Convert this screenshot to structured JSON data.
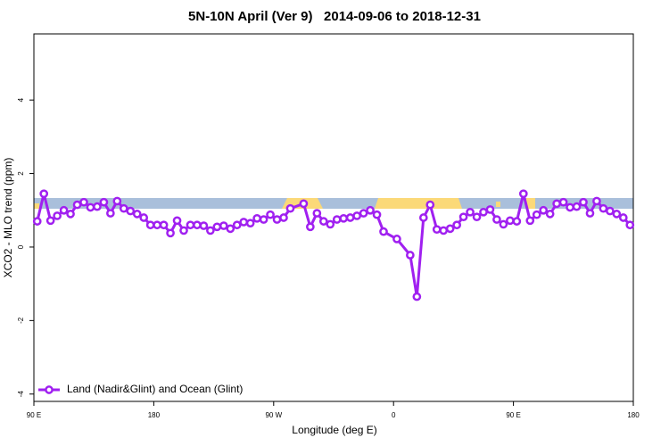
{
  "chart_data": {
    "type": "line",
    "title": "5N-10N April (Ver 9)   2014-09-06 to 2018-12-31",
    "xlabel": "Longitude (deg E)",
    "ylabel": "XCO2 - MLO trend (ppm)",
    "x": [
      -267.5,
      -262.5,
      -257.5,
      -252.5,
      -247.5,
      -242.5,
      -237.5,
      -232.5,
      -227.5,
      -222.5,
      -217.5,
      -212.5,
      -207.5,
      -202.5,
      -197.5,
      -192.5,
      -187.5,
      -182.5,
      -177.5,
      -172.5,
      -167.5,
      -162.5,
      -157.5,
      -152.5,
      -147.5,
      -142.5,
      -137.5,
      -132.5,
      -127.5,
      -122.5,
      -117.5,
      -112.5,
      -107.5,
      -102.5,
      -97.5,
      -92.5,
      -87.5,
      -82.5,
      -77.5,
      -67.5,
      -62.5,
      -57.5,
      -52.5,
      -47.5,
      -42.5,
      -37.5,
      -32.5,
      -27.5,
      -22.5,
      -17.5,
      -12.5,
      -7.5,
      2.5,
      12.5,
      17.5,
      22.5,
      27.5,
      32.5,
      37.5,
      42.5,
      47.5,
      52.5,
      57.5,
      62.5,
      67.5,
      72.5,
      77.5,
      82.5,
      87.5,
      92.5,
      97.5,
      102.5,
      107.5,
      112.5,
      117.5,
      122.5,
      127.5,
      132.5,
      137.5,
      142.5,
      147.5,
      152.5,
      157.5,
      162.5,
      167.5,
      172.5,
      177.5
    ],
    "series": [
      {
        "name": "Land (Nadir&Glint) and Ocean (Glint)",
        "color": "#a020f0",
        "values": [
          0.7,
          1.45,
          0.72,
          0.85,
          1.0,
          0.9,
          1.15,
          1.22,
          1.08,
          1.1,
          1.22,
          0.92,
          1.25,
          1.05,
          0.98,
          0.9,
          0.8,
          0.6,
          0.6,
          0.6,
          0.38,
          0.72,
          0.45,
          0.6,
          0.6,
          0.58,
          0.45,
          0.55,
          0.58,
          0.5,
          0.6,
          0.68,
          0.65,
          0.78,
          0.75,
          0.88,
          0.75,
          0.8,
          1.05,
          1.18,
          0.55,
          0.92,
          0.7,
          0.62,
          0.75,
          0.78,
          0.8,
          0.85,
          0.92,
          1.0,
          0.88,
          0.42,
          0.22,
          -0.22,
          -1.35,
          0.8,
          1.15,
          0.48,
          0.45,
          0.5,
          0.6,
          0.82,
          0.95,
          0.82,
          0.95,
          1.02,
          0.75,
          0.62,
          0.72,
          0.7,
          1.45,
          0.72,
          0.88,
          1.0,
          0.9,
          1.18,
          1.22,
          1.08,
          1.1,
          1.22,
          0.92,
          1.25,
          1.05,
          0.98,
          0.9,
          0.8,
          0.6
        ]
      }
    ],
    "xlim": [
      -270,
      180
    ],
    "xticks": [
      {
        "value": -270,
        "label": "90 E"
      },
      {
        "value": -180,
        "label": "180"
      },
      {
        "value": -90,
        "label": "90 W"
      },
      0,
      {
        "value": 90,
        "label": "90 E"
      },
      {
        "value": 180,
        "label": "180"
      }
    ],
    "ylim": [
      -4.2,
      5.8
    ],
    "yticks": [
      -4,
      -2,
      0,
      2,
      4
    ],
    "legend": "bottom-left"
  }
}
